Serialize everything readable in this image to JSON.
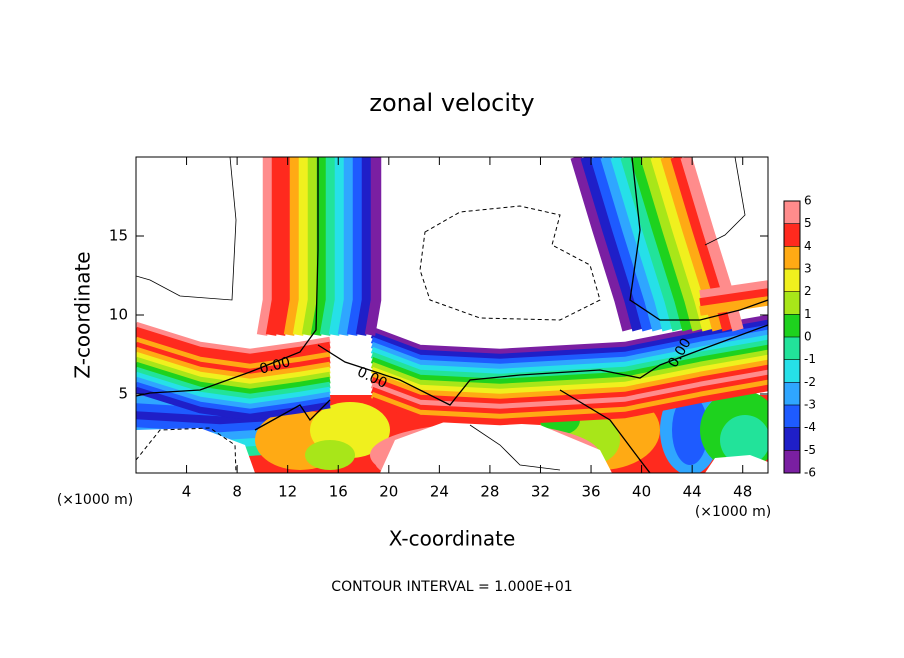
{
  "chart_data": {
    "type": "contour",
    "title": "zonal velocity",
    "x_label": "X-coordinate",
    "y_label": "Z-coordinate",
    "x_unit": "(×1000 m)",
    "y_unit": "(×1000 m)",
    "xlim": [
      0,
      50
    ],
    "ylim": [
      0,
      20
    ],
    "xticks": [
      4,
      8,
      12,
      16,
      20,
      24,
      28,
      32,
      36,
      40,
      44,
      48
    ],
    "yticks": [
      5,
      10,
      15
    ],
    "contour_labels": [
      "0.00",
      "0.00",
      "0.00"
    ],
    "footer": "CONTOUR INTERVAL = 1.000E+01",
    "colorbar": {
      "lim": [
        -6,
        6
      ],
      "ticks": [
        -6,
        -5,
        -4,
        -3,
        -2,
        -1,
        0,
        1,
        2,
        3,
        4,
        5,
        6
      ],
      "colors": [
        "#7a1fa2",
        "#1f1fc8",
        "#1e5bff",
        "#2fa6ff",
        "#26e0e8",
        "#22e39a",
        "#1ed21e",
        "#a8e619",
        "#f0f01e",
        "#ffaa14",
        "#ff2a1e",
        "#ff8c8c"
      ]
    }
  }
}
